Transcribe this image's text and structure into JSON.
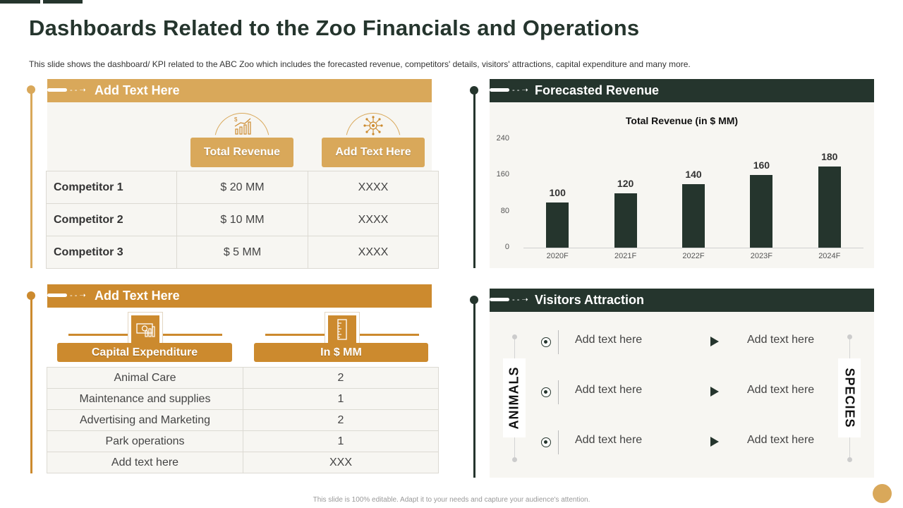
{
  "title": "Dashboards Related to the Zoo Financials and Operations",
  "subtitle": "This slide shows the dashboard/ KPI related to the ABC Zoo which includes the forecasted revenue,  competitors' details, visitors' attractions, capital expenditure and many more.",
  "footer": "This slide is 100% editable. Adapt it to your needs and capture your audience's attention.",
  "colors": {
    "gold": "#d9a85a",
    "orange": "#cc8a2e",
    "dark_green": "#25352d"
  },
  "panel1": {
    "header": "Add Text Here",
    "dash_glyph": "- - ➝",
    "col_headers": [
      "Total Revenue",
      "Add Text Here"
    ],
    "icons": [
      "revenue-growth-icon",
      "network-icon"
    ],
    "rows": [
      {
        "name": "Competitor 1",
        "revenue": "$ 20 MM",
        "other": "XXXX"
      },
      {
        "name": "Competitor 2",
        "revenue": "$ 10 MM",
        "other": "XXXX"
      },
      {
        "name": "Competitor 3",
        "revenue": "$ 5 MM",
        "other": "XXXX"
      }
    ]
  },
  "panel2": {
    "header": "Add Text Here",
    "dash_glyph": "- - ➝",
    "col_headers": [
      "Capital Expenditure",
      "In $ MM"
    ],
    "icons": [
      "money-icon",
      "ruler-icon"
    ],
    "rows": [
      {
        "item": "Animal Care",
        "value": "2"
      },
      {
        "item": "Maintenance and supplies",
        "value": "1"
      },
      {
        "item": "Advertising and Marketing",
        "value": "2"
      },
      {
        "item": "Park operations",
        "value": "1"
      },
      {
        "item": "Add text here",
        "value": "XXX"
      }
    ]
  },
  "panel3": {
    "header": "Forecasted Revenue",
    "dash_glyph": "- - ➝"
  },
  "chart_data": {
    "type": "bar",
    "title": "Total Revenue (in $ MM)",
    "categories": [
      "2020F",
      "2021F",
      "2022F",
      "2023F",
      "2024F"
    ],
    "values": [
      100,
      120,
      140,
      160,
      180
    ],
    "ylim": [
      0,
      240
    ],
    "yticks": [
      "0",
      "80",
      "160",
      "240"
    ],
    "xlabel": "",
    "ylabel": "",
    "grid": false,
    "bar_color": "#25352d"
  },
  "panel4": {
    "header": "Visitors Attraction",
    "dash_glyph": "- - ➝",
    "left_label": "ANIMALS",
    "right_label": "SPECIES",
    "rows": [
      {
        "left": "Add text here",
        "right": "Add text here"
      },
      {
        "left": "Add text here",
        "right": "Add text here"
      },
      {
        "left": "Add text here",
        "right": "Add text here"
      }
    ]
  }
}
